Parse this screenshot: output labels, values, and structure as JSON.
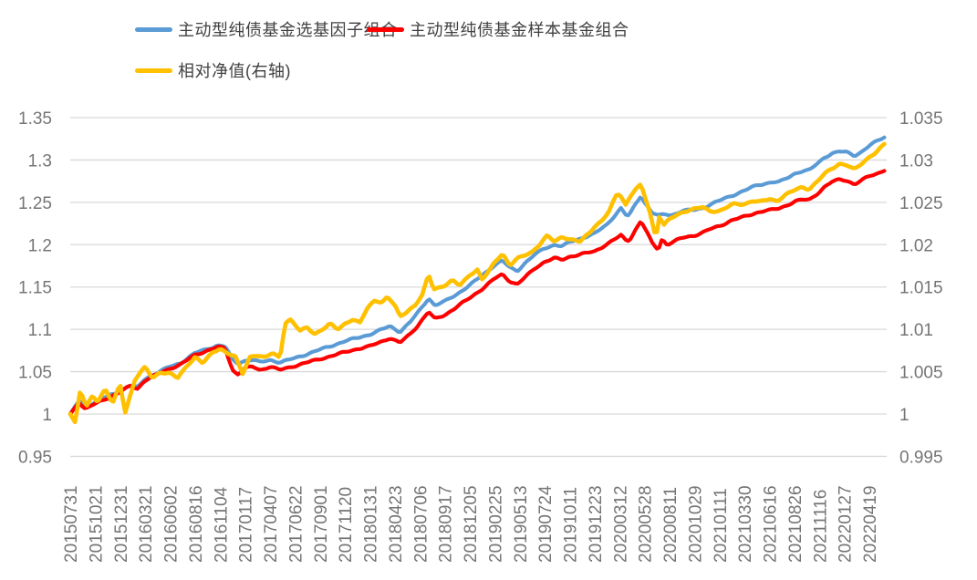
{
  "legend": [
    {
      "label": "主动型纯债基金选基因子组合",
      "color": "#5B9BD5"
    },
    {
      "label": "主动型纯债基金样本基金组合",
      "color": "#FF0000"
    },
    {
      "label": "相对净值(右轴)",
      "color": "#FFC000"
    }
  ],
  "colors": {
    "blue": "#5B9BD5",
    "red": "#FF0000",
    "gold": "#FFC000",
    "grid": "#D9D9D9",
    "axis_text": "#757575"
  },
  "chart_data": {
    "type": "line",
    "title": "",
    "legend_position": "top",
    "grid": "horizontal",
    "x_labels": [
      "20150731",
      "20151021",
      "20151231",
      "20160321",
      "20160602",
      "20160816",
      "20161104",
      "20170117",
      "20170407",
      "20170622",
      "20170901",
      "20171120",
      "20180131",
      "20180423",
      "20180706",
      "20180917",
      "20181205",
      "20190225",
      "20190513",
      "20190724",
      "20191011",
      "20191223",
      "20200312",
      "20200528",
      "20200811",
      "20201029",
      "20210111",
      "20210330",
      "20210616",
      "20210826",
      "20211116",
      "20220127",
      "20220419"
    ],
    "left_axis": {
      "ticks": [
        "1.35",
        "1.3",
        "1.25",
        "1.2",
        "1.15",
        "1.1",
        "1.05",
        "1",
        "0.95"
      ],
      "range": [
        0.95,
        1.35
      ]
    },
    "right_axis": {
      "ticks": [
        "1.035",
        "1.03",
        "1.025",
        "1.02",
        "1.015",
        "1.01",
        "1.005",
        "1",
        "0.995"
      ],
      "range": [
        0.995,
        1.035
      ]
    },
    "series": [
      {
        "name": "主动型纯债基金选基因子组合",
        "axis": "left",
        "color": "#5B9BD5",
        "points": [
          [
            0,
            1.0
          ],
          [
            0.35,
            1.016
          ],
          [
            0.6,
            1.008
          ],
          [
            1,
            1.014
          ],
          [
            1.5,
            1.021
          ],
          [
            2,
            1.027
          ],
          [
            2.4,
            1.034
          ],
          [
            2.7,
            1.031
          ],
          [
            3,
            1.042
          ],
          [
            3.5,
            1.049
          ],
          [
            4,
            1.056
          ],
          [
            4.4,
            1.06
          ],
          [
            5,
            1.072
          ],
          [
            5.5,
            1.077
          ],
          [
            5.9,
            1.081
          ],
          [
            6.2,
            1.08
          ],
          [
            6.5,
            1.064
          ],
          [
            6.7,
            1.06
          ],
          [
            7,
            1.063
          ],
          [
            7.3,
            1.064
          ],
          [
            7.6,
            1.061
          ],
          [
            8,
            1.064
          ],
          [
            8.4,
            1.061
          ],
          [
            9,
            1.066
          ],
          [
            9.5,
            1.071
          ],
          [
            10,
            1.076
          ],
          [
            10.5,
            1.081
          ],
          [
            11,
            1.086
          ],
          [
            11.5,
            1.09
          ],
          [
            12,
            1.094
          ],
          [
            12.5,
            1.1
          ],
          [
            12.8,
            1.104
          ],
          [
            13.2,
            1.097
          ],
          [
            13.6,
            1.108
          ],
          [
            13.9,
            1.119
          ],
          [
            14.35,
            1.137
          ],
          [
            14.6,
            1.128
          ],
          [
            15,
            1.133
          ],
          [
            15.5,
            1.142
          ],
          [
            16,
            1.152
          ],
          [
            16.5,
            1.164
          ],
          [
            17,
            1.176
          ],
          [
            17.3,
            1.181
          ],
          [
            17.6,
            1.173
          ],
          [
            17.9,
            1.169
          ],
          [
            18.2,
            1.178
          ],
          [
            18.6,
            1.188
          ],
          [
            19,
            1.196
          ],
          [
            19.4,
            1.2
          ],
          [
            19.7,
            1.198
          ],
          [
            20,
            1.203
          ],
          [
            20.5,
            1.208
          ],
          [
            21,
            1.213
          ],
          [
            21.5,
            1.224
          ],
          [
            21.9,
            1.238
          ],
          [
            22.05,
            1.243
          ],
          [
            22.3,
            1.233
          ],
          [
            22.45,
            1.238
          ],
          [
            22.6,
            1.246
          ],
          [
            22.85,
            1.258
          ],
          [
            23.0,
            1.25
          ],
          [
            23.3,
            1.238
          ],
          [
            23.55,
            1.234
          ],
          [
            23.8,
            1.236
          ],
          [
            24.1,
            1.235
          ],
          [
            24.5,
            1.24
          ],
          [
            25,
            1.241
          ],
          [
            25.3,
            1.243
          ],
          [
            25.6,
            1.247
          ],
          [
            26,
            1.252
          ],
          [
            26.5,
            1.258
          ],
          [
            27,
            1.264
          ],
          [
            27.5,
            1.27
          ],
          [
            27.8,
            1.272
          ],
          [
            28.1,
            1.274
          ],
          [
            28.4,
            1.274
          ],
          [
            28.8,
            1.28
          ],
          [
            29,
            1.284
          ],
          [
            29.3,
            1.287
          ],
          [
            29.6,
            1.288
          ],
          [
            29.9,
            1.295
          ],
          [
            30.2,
            1.303
          ],
          [
            30.5,
            1.308
          ],
          [
            30.8,
            1.31
          ],
          [
            31.1,
            1.309
          ],
          [
            31.4,
            1.305
          ],
          [
            31.7,
            1.31
          ],
          [
            32,
            1.317
          ],
          [
            32.3,
            1.322
          ],
          [
            32.6,
            1.327
          ]
        ]
      },
      {
        "name": "主动型纯债基金样本基金组合",
        "axis": "left",
        "color": "#FF0000",
        "points": [
          [
            0,
            1.0
          ],
          [
            0.35,
            1.014
          ],
          [
            0.6,
            1.006
          ],
          [
            1,
            1.012
          ],
          [
            1.5,
            1.019
          ],
          [
            2,
            1.026
          ],
          [
            2.4,
            1.033
          ],
          [
            2.7,
            1.03
          ],
          [
            3,
            1.04
          ],
          [
            3.5,
            1.047
          ],
          [
            4,
            1.054
          ],
          [
            4.4,
            1.058
          ],
          [
            5,
            1.07
          ],
          [
            5.5,
            1.075
          ],
          [
            5.9,
            1.079
          ],
          [
            6.2,
            1.078
          ],
          [
            6.5,
            1.052
          ],
          [
            6.7,
            1.047
          ],
          [
            7,
            1.054
          ],
          [
            7.3,
            1.056
          ],
          [
            7.6,
            1.052
          ],
          [
            8,
            1.056
          ],
          [
            8.4,
            1.052
          ],
          [
            9,
            1.057
          ],
          [
            9.5,
            1.061
          ],
          [
            10,
            1.065
          ],
          [
            10.5,
            1.069
          ],
          [
            11,
            1.073
          ],
          [
            11.5,
            1.077
          ],
          [
            12,
            1.08
          ],
          [
            12.5,
            1.086
          ],
          [
            12.8,
            1.09
          ],
          [
            13.2,
            1.084
          ],
          [
            13.6,
            1.094
          ],
          [
            13.9,
            1.104
          ],
          [
            14.35,
            1.121
          ],
          [
            14.6,
            1.112
          ],
          [
            15,
            1.117
          ],
          [
            15.5,
            1.127
          ],
          [
            16,
            1.137
          ],
          [
            16.5,
            1.148
          ],
          [
            17,
            1.16
          ],
          [
            17.3,
            1.165
          ],
          [
            17.6,
            1.157
          ],
          [
            17.9,
            1.153
          ],
          [
            18.2,
            1.161
          ],
          [
            18.6,
            1.172
          ],
          [
            19,
            1.18
          ],
          [
            19.4,
            1.184
          ],
          [
            19.7,
            1.182
          ],
          [
            20,
            1.186
          ],
          [
            20.5,
            1.189
          ],
          [
            21,
            1.192
          ],
          [
            21.5,
            1.201
          ],
          [
            21.9,
            1.208
          ],
          [
            22.05,
            1.211
          ],
          [
            22.3,
            1.204
          ],
          [
            22.45,
            1.208
          ],
          [
            22.6,
            1.216
          ],
          [
            22.85,
            1.228
          ],
          [
            23.0,
            1.22
          ],
          [
            23.3,
            1.202
          ],
          [
            23.55,
            1.194
          ],
          [
            23.7,
            1.207
          ],
          [
            23.9,
            1.2
          ],
          [
            24.2,
            1.204
          ],
          [
            24.5,
            1.208
          ],
          [
            25,
            1.211
          ],
          [
            25.3,
            1.214
          ],
          [
            25.6,
            1.218
          ],
          [
            26,
            1.222
          ],
          [
            26.5,
            1.229
          ],
          [
            27,
            1.233
          ],
          [
            27.5,
            1.238
          ],
          [
            27.8,
            1.24
          ],
          [
            28.1,
            1.241
          ],
          [
            28.4,
            1.243
          ],
          [
            28.8,
            1.248
          ],
          [
            29,
            1.251
          ],
          [
            29.3,
            1.253
          ],
          [
            29.6,
            1.253
          ],
          [
            29.9,
            1.26
          ],
          [
            30.2,
            1.268
          ],
          [
            30.5,
            1.274
          ],
          [
            30.8,
            1.277
          ],
          [
            31.1,
            1.276
          ],
          [
            31.4,
            1.271
          ],
          [
            31.7,
            1.276
          ],
          [
            32,
            1.281
          ],
          [
            32.3,
            1.284
          ],
          [
            32.6,
            1.288
          ]
        ]
      },
      {
        "name": "相对净值(右轴)",
        "axis": "right",
        "color": "#FFC000",
        "points": [
          [
            0,
            1.0
          ],
          [
            0.2,
            0.999
          ],
          [
            0.4,
            1.0028
          ],
          [
            0.65,
            1.0008
          ],
          [
            0.9,
            1.0022
          ],
          [
            1.1,
            1.0015
          ],
          [
            1.4,
            1.003
          ],
          [
            1.7,
            1.0012
          ],
          [
            2.0,
            1.0035
          ],
          [
            2.2,
            1.0002
          ],
          [
            2.6,
            1.0042
          ],
          [
            3.0,
            1.0055
          ],
          [
            3.3,
            1.0042
          ],
          [
            3.6,
            1.005
          ],
          [
            4,
            1.0048
          ],
          [
            4.3,
            1.0042
          ],
          [
            4.7,
            1.0058
          ],
          [
            5,
            1.0068
          ],
          [
            5.3,
            1.006
          ],
          [
            5.7,
            1.0072
          ],
          [
            6,
            1.0078
          ],
          [
            6.3,
            1.0072
          ],
          [
            6.6,
            1.0068
          ],
          [
            6.9,
            1.0047
          ],
          [
            7.2,
            1.0068
          ],
          [
            7.5,
            1.007
          ],
          [
            7.8,
            1.0066
          ],
          [
            8.1,
            1.0072
          ],
          [
            8.4,
            1.0066
          ],
          [
            8.6,
            1.0108
          ],
          [
            8.8,
            1.0112
          ],
          [
            9,
            1.0105
          ],
          [
            9.2,
            1.0098
          ],
          [
            9.5,
            1.0102
          ],
          [
            9.8,
            1.0095
          ],
          [
            10.1,
            1.01
          ],
          [
            10.4,
            1.0106
          ],
          [
            10.7,
            1.01
          ],
          [
            11,
            1.0107
          ],
          [
            11.3,
            1.0112
          ],
          [
            11.6,
            1.0107
          ],
          [
            11.9,
            1.0125
          ],
          [
            12.2,
            1.0135
          ],
          [
            12.5,
            1.0132
          ],
          [
            12.7,
            1.0138
          ],
          [
            13,
            1.0128
          ],
          [
            13.2,
            1.0115
          ],
          [
            13.5,
            1.0122
          ],
          [
            13.8,
            1.0128
          ],
          [
            14.1,
            1.014
          ],
          [
            14.35,
            1.0165
          ],
          [
            14.55,
            1.0148
          ],
          [
            14.8,
            1.015
          ],
          [
            15,
            1.0152
          ],
          [
            15.3,
            1.0157
          ],
          [
            15.6,
            1.0152
          ],
          [
            16,
            1.0165
          ],
          [
            16.3,
            1.017
          ],
          [
            16.5,
            1.0158
          ],
          [
            16.8,
            1.017
          ],
          [
            17,
            1.018
          ],
          [
            17.3,
            1.019
          ],
          [
            17.6,
            1.0175
          ],
          [
            17.9,
            1.0183
          ],
          [
            18.2,
            1.0188
          ],
          [
            18.5,
            1.0192
          ],
          [
            18.8,
            1.02
          ],
          [
            19.1,
            1.021
          ],
          [
            19.4,
            1.0204
          ],
          [
            19.7,
            1.021
          ],
          [
            20,
            1.0206
          ],
          [
            20.4,
            1.0203
          ],
          [
            20.8,
            1.0215
          ],
          [
            21,
            1.0222
          ],
          [
            21.3,
            1.0228
          ],
          [
            21.6,
            1.024
          ],
          [
            21.85,
            1.0258
          ],
          [
            22.0,
            1.0261
          ],
          [
            22.25,
            1.0247
          ],
          [
            22.4,
            1.0256
          ],
          [
            22.6,
            1.0264
          ],
          [
            22.85,
            1.027
          ],
          [
            23.0,
            1.0258
          ],
          [
            23.2,
            1.024
          ],
          [
            23.45,
            1.0208
          ],
          [
            23.6,
            1.0236
          ],
          [
            23.75,
            1.0222
          ],
          [
            24,
            1.023
          ],
          [
            24.3,
            1.0235
          ],
          [
            24.6,
            1.024
          ],
          [
            25,
            1.0242
          ],
          [
            25.3,
            1.0244
          ],
          [
            25.6,
            1.024
          ],
          [
            26,
            1.024
          ],
          [
            26.3,
            1.0244
          ],
          [
            26.6,
            1.0248
          ],
          [
            27,
            1.0248
          ],
          [
            27.3,
            1.0252
          ],
          [
            27.6,
            1.025
          ],
          [
            28,
            1.0254
          ],
          [
            28.3,
            1.0252
          ],
          [
            28.6,
            1.0258
          ],
          [
            29,
            1.0264
          ],
          [
            29.3,
            1.0268
          ],
          [
            29.6,
            1.0266
          ],
          [
            29.9,
            1.0274
          ],
          [
            30.2,
            1.0283
          ],
          [
            30.5,
            1.029
          ],
          [
            30.8,
            1.0296
          ],
          [
            31.1,
            1.0294
          ],
          [
            31.4,
            1.0288
          ],
          [
            31.7,
            1.0296
          ],
          [
            32,
            1.0304
          ],
          [
            32.3,
            1.031
          ],
          [
            32.6,
            1.0318
          ]
        ]
      }
    ]
  }
}
